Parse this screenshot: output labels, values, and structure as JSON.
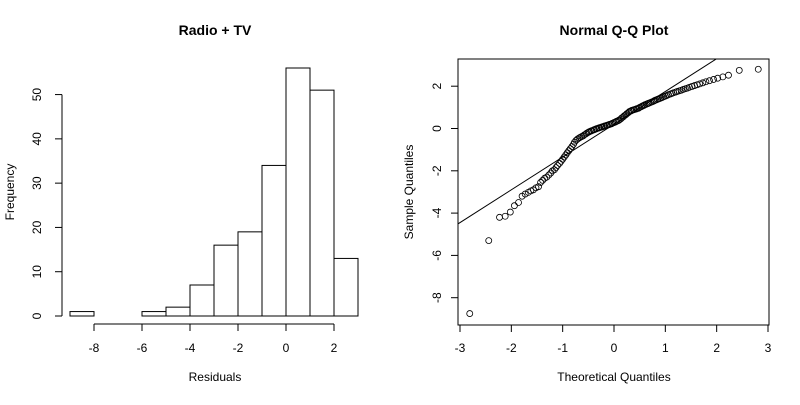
{
  "chart_data": [
    {
      "type": "bar",
      "title": "Radio + TV",
      "xlabel": "Residuals",
      "ylabel": "Frequency",
      "bin_edges": [
        -9,
        -8,
        -7,
        -6,
        -5,
        -4,
        -3,
        -2,
        -1,
        0,
        1,
        2,
        3
      ],
      "values": [
        1,
        0,
        0,
        1,
        2,
        7,
        16,
        19,
        34,
        56,
        51,
        13
      ],
      "x_ticks": [
        -8,
        -6,
        -4,
        -2,
        0,
        2
      ],
      "x_tick_labels": [
        "-8",
        "-6",
        "-4",
        "-2",
        "0",
        "2"
      ],
      "y_ticks": [
        0,
        10,
        20,
        30,
        40,
        50
      ],
      "y_tick_labels": [
        "0",
        "10",
        "20",
        "30",
        "40",
        "50"
      ],
      "xlim": [
        -9,
        3
      ],
      "ylim": [
        0,
        56
      ]
    },
    {
      "type": "scatter",
      "title": "Normal Q-Q Plot",
      "xlabel": "Theoretical Quantiles",
      "ylabel": "Sample Quantiles",
      "x_ticks": [
        -3,
        -2,
        -1,
        0,
        1,
        2,
        3
      ],
      "x_tick_labels": [
        "-3",
        "-2",
        "-1",
        "0",
        "1",
        "2",
        "3"
      ],
      "y_ticks": [
        -8,
        -6,
        -4,
        -2,
        0,
        2
      ],
      "y_tick_labels": [
        "-8",
        "-6",
        "-4",
        "-2",
        "0",
        "2"
      ],
      "xlim": [
        -3,
        3
      ],
      "ylim": [
        -8.9,
        3.1
      ],
      "reference_line": {
        "intercept": 0.2,
        "slope": 1.55
      },
      "points": [
        [
          -2.81,
          -8.75
        ],
        [
          -2.44,
          -5.3
        ],
        [
          -2.23,
          -4.2
        ],
        [
          -2.12,
          -4.15
        ],
        [
          -2.02,
          -3.95
        ],
        [
          -1.94,
          -3.65
        ],
        [
          -1.86,
          -3.5
        ],
        [
          -1.79,
          -3.2
        ],
        [
          -1.73,
          -3.1
        ],
        [
          -1.67,
          -3.02
        ],
        [
          -1.62,
          -2.95
        ],
        [
          -1.57,
          -2.9
        ],
        [
          -1.52,
          -2.8
        ],
        [
          -1.47,
          -2.75
        ],
        [
          -1.43,
          -2.55
        ],
        [
          -1.39,
          -2.45
        ],
        [
          -1.35,
          -2.35
        ],
        [
          -1.31,
          -2.3
        ],
        [
          -1.27,
          -2.2
        ],
        [
          -1.23,
          -2.1
        ],
        [
          -1.2,
          -2.0
        ],
        [
          -1.16,
          -1.95
        ],
        [
          -1.13,
          -1.85
        ],
        [
          -1.1,
          -1.75
        ],
        [
          -1.06,
          -1.65
        ],
        [
          -1.03,
          -1.55
        ],
        [
          -1.0,
          -1.45
        ],
        [
          -0.97,
          -1.35
        ],
        [
          -0.94,
          -1.25
        ],
        [
          -0.91,
          -1.15
        ],
        [
          -0.88,
          -1.05
        ],
        [
          -0.85,
          -0.95
        ],
        [
          -0.82,
          -0.85
        ],
        [
          -0.79,
          -0.75
        ],
        [
          -0.77,
          -0.65
        ],
        [
          -0.74,
          -0.56
        ],
        [
          -0.71,
          -0.5
        ],
        [
          -0.68,
          -0.45
        ],
        [
          -0.66,
          -0.42
        ],
        [
          -0.63,
          -0.38
        ],
        [
          -0.6,
          -0.35
        ],
        [
          -0.58,
          -0.3
        ],
        [
          -0.55,
          -0.26
        ],
        [
          -0.53,
          -0.22
        ],
        [
          -0.5,
          -0.18
        ],
        [
          -0.48,
          -0.15
        ],
        [
          -0.45,
          -0.12
        ],
        [
          -0.43,
          -0.1
        ],
        [
          -0.4,
          -0.07
        ],
        [
          -0.38,
          -0.05
        ],
        [
          -0.35,
          -0.02
        ],
        [
          -0.33,
          0.0
        ],
        [
          -0.3,
          0.02
        ],
        [
          -0.28,
          0.04
        ],
        [
          -0.25,
          0.06
        ],
        [
          -0.23,
          0.08
        ],
        [
          -0.2,
          0.1
        ],
        [
          -0.18,
          0.12
        ],
        [
          -0.15,
          0.14
        ],
        [
          -0.13,
          0.16
        ],
        [
          -0.1,
          0.18
        ],
        [
          -0.08,
          0.2
        ],
        [
          -0.05,
          0.22
        ],
        [
          -0.03,
          0.25
        ],
        [
          0.0,
          0.28
        ],
        [
          0.03,
          0.31
        ],
        [
          0.05,
          0.34
        ],
        [
          0.08,
          0.37
        ],
        [
          0.1,
          0.4
        ],
        [
          0.13,
          0.45
        ],
        [
          0.15,
          0.5
        ],
        [
          0.18,
          0.55
        ],
        [
          0.2,
          0.6
        ],
        [
          0.23,
          0.65
        ],
        [
          0.25,
          0.7
        ],
        [
          0.28,
          0.75
        ],
        [
          0.3,
          0.8
        ],
        [
          0.33,
          0.83
        ],
        [
          0.35,
          0.86
        ],
        [
          0.38,
          0.88
        ],
        [
          0.4,
          0.9
        ],
        [
          0.43,
          0.92
        ],
        [
          0.45,
          0.94
        ],
        [
          0.48,
          0.96
        ],
        [
          0.5,
          1.0
        ],
        [
          0.53,
          1.03
        ],
        [
          0.55,
          1.06
        ],
        [
          0.58,
          1.09
        ],
        [
          0.6,
          1.12
        ],
        [
          0.63,
          1.15
        ],
        [
          0.66,
          1.18
        ],
        [
          0.68,
          1.2
        ],
        [
          0.71,
          1.23
        ],
        [
          0.74,
          1.26
        ],
        [
          0.77,
          1.29
        ],
        [
          0.79,
          1.32
        ],
        [
          0.82,
          1.35
        ],
        [
          0.85,
          1.38
        ],
        [
          0.88,
          1.41
        ],
        [
          0.91,
          1.44
        ],
        [
          0.94,
          1.47
        ],
        [
          0.97,
          1.5
        ],
        [
          1.0,
          1.53
        ],
        [
          1.03,
          1.56
        ],
        [
          1.06,
          1.6
        ],
        [
          1.1,
          1.63
        ],
        [
          1.13,
          1.66
        ],
        [
          1.16,
          1.69
        ],
        [
          1.2,
          1.72
        ],
        [
          1.23,
          1.75
        ],
        [
          1.27,
          1.78
        ],
        [
          1.31,
          1.81
        ],
        [
          1.35,
          1.85
        ],
        [
          1.39,
          1.88
        ],
        [
          1.43,
          1.91
        ],
        [
          1.47,
          1.95
        ],
        [
          1.52,
          1.99
        ],
        [
          1.57,
          2.03
        ],
        [
          1.62,
          2.07
        ],
        [
          1.67,
          2.11
        ],
        [
          1.73,
          2.16
        ],
        [
          1.79,
          2.21
        ],
        [
          1.86,
          2.26
        ],
        [
          1.94,
          2.32
        ],
        [
          2.02,
          2.38
        ],
        [
          2.12,
          2.44
        ],
        [
          2.23,
          2.52
        ],
        [
          2.44,
          2.75
        ],
        [
          2.81,
          2.8
        ]
      ]
    }
  ]
}
